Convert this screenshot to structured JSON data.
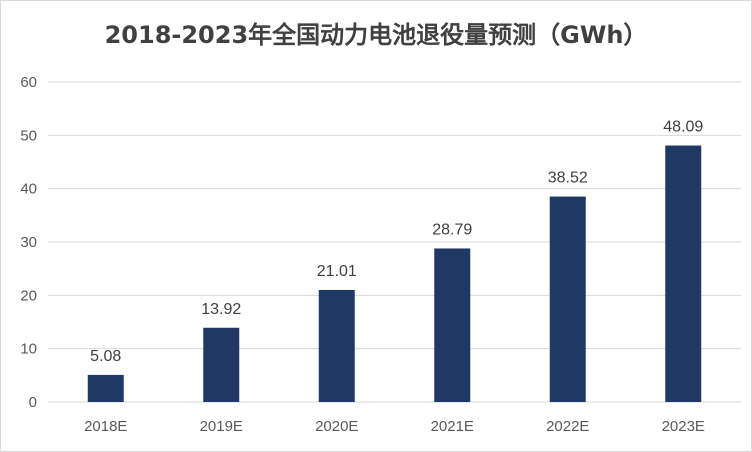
{
  "chart_data": {
    "type": "bar",
    "title": "2018-2023年全国动力电池退役量预测（GWh）",
    "categories": [
      "2018E",
      "2019E",
      "2020E",
      "2021E",
      "2022E",
      "2023E"
    ],
    "values": [
      5.08,
      13.92,
      21.01,
      28.79,
      38.52,
      48.09
    ],
    "data_labels": [
      "5.08",
      "13.92",
      "21.01",
      "28.79",
      "38.52",
      "48.09"
    ],
    "y_ticks": [
      "0",
      "10",
      "20",
      "30",
      "40",
      "50",
      "60"
    ],
    "ylim": [
      0,
      60
    ],
    "grid": true,
    "bar_color": "#1f3864",
    "grid_color": "#d9d9d9"
  }
}
